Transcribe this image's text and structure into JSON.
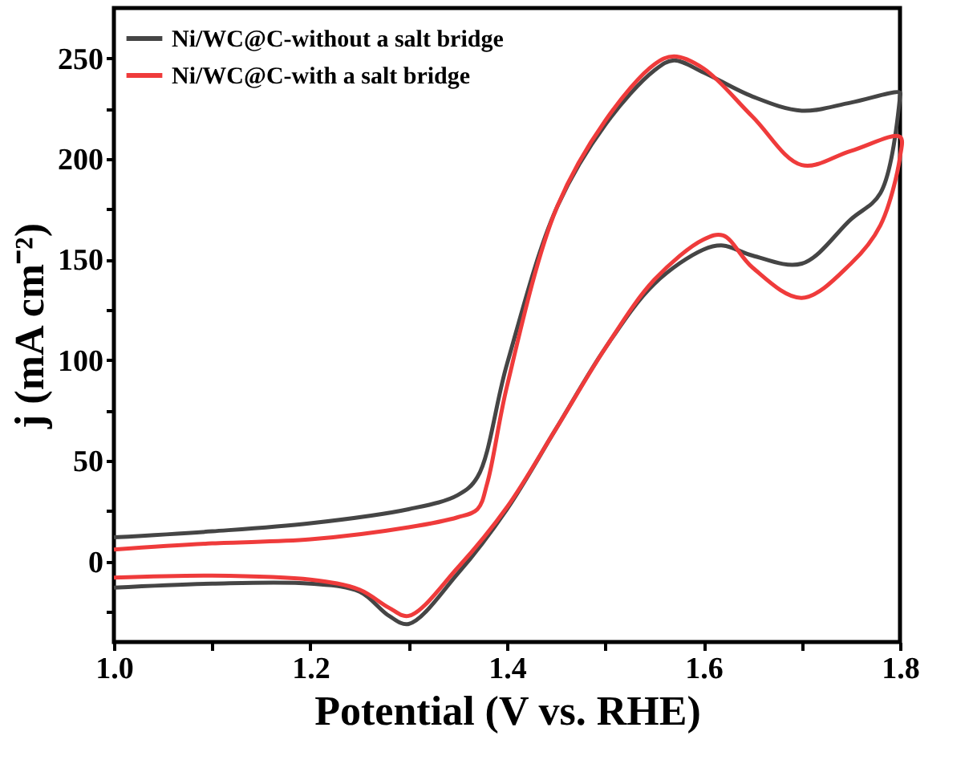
{
  "chart_data": {
    "type": "line",
    "xlabel": "Potential (V vs. RHE)",
    "ylabel": "j (mA cm⁻²)",
    "xlim": [
      1.0,
      1.8
    ],
    "ylim": [
      -40,
      275
    ],
    "xticks": [
      {
        "value": 1.0,
        "label": "1.0"
      },
      {
        "value": 1.1,
        "label": null
      },
      1.2,
      {
        "value": 1.3,
        "label": null
      },
      1.4,
      {
        "value": 1.5,
        "label": null
      },
      1.6,
      {
        "value": 1.7,
        "label": null
      },
      1.8
    ],
    "yticks": [
      {
        "value": -25,
        "label": null
      },
      0,
      {
        "value": 25,
        "label": null
      },
      50,
      {
        "value": 75,
        "label": null
      },
      100,
      {
        "value": 125,
        "label": null
      },
      150,
      {
        "value": 175,
        "label": null
      },
      200,
      {
        "value": 225,
        "label": null
      },
      250
    ],
    "grid": false,
    "legend": "top left",
    "marker": "none",
    "line_style": "solid",
    "series": [
      {
        "name": "Ni/WC@C-without a salt bridge",
        "color": "#454545",
        "x": [
          1.0,
          1.1,
          1.2,
          1.3,
          1.35,
          1.37,
          1.4,
          1.45,
          1.5,
          1.55,
          1.57,
          1.6,
          1.65,
          1.7,
          1.75,
          1.8,
          1.8,
          1.78,
          1.75,
          1.7,
          1.65,
          1.62,
          1.6,
          1.55,
          1.5,
          1.45,
          1.4,
          1.35,
          1.3,
          1.28,
          1.25,
          1.2,
          1.1,
          1.0
        ],
        "values": [
          12,
          15,
          19,
          26,
          33,
          42,
          98,
          175,
          217,
          244,
          249,
          243,
          231,
          224,
          228,
          233,
          231,
          183,
          170,
          148,
          152,
          157,
          155,
          138,
          106,
          66,
          26,
          -6,
          -31,
          -27,
          -15,
          -11,
          -11,
          -13
        ]
      },
      {
        "name": "Ni/WC@C-with a salt bridge",
        "color": "#ef3b3b",
        "x": [
          1.0,
          1.1,
          1.2,
          1.3,
          1.35,
          1.37,
          1.38,
          1.4,
          1.45,
          1.5,
          1.55,
          1.57,
          1.6,
          1.65,
          1.7,
          1.75,
          1.8,
          1.8,
          1.78,
          1.75,
          1.7,
          1.65,
          1.62,
          1.6,
          1.55,
          1.5,
          1.45,
          1.4,
          1.35,
          1.3,
          1.28,
          1.25,
          1.2,
          1.1,
          1.0
        ],
        "values": [
          6,
          9,
          11,
          17,
          22,
          26,
          39,
          87,
          175,
          219,
          247,
          251,
          245,
          221,
          197,
          204,
          211,
          201,
          167,
          148,
          131,
          146,
          162,
          160,
          140,
          106,
          66,
          27,
          -3,
          -27,
          -23,
          -14,
          -9,
          -7,
          -8
        ]
      }
    ]
  }
}
